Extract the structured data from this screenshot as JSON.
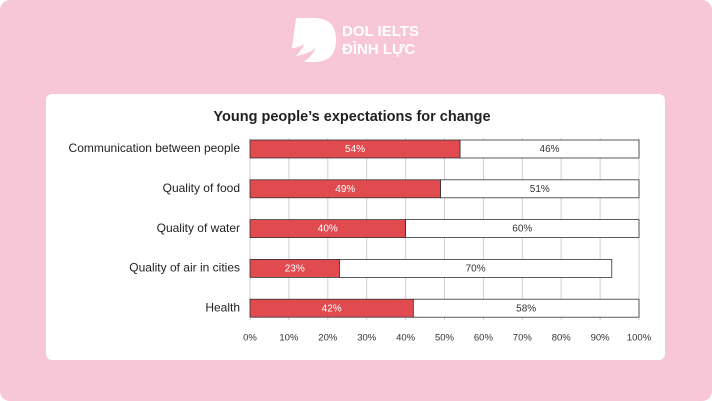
{
  "logo": {
    "line1": "DOL IELTS",
    "line2": "ĐÌNH LỰC"
  },
  "chart_data": {
    "type": "stacked-barh",
    "title": "Young people’s expectations for change",
    "categories": [
      "Communication between people",
      "Quality of food",
      "Quality of water",
      "Quality of air in cities",
      "Health"
    ],
    "series": [
      {
        "color": "#e14b50",
        "values": [
          54,
          49,
          40,
          23,
          42
        ],
        "value_labels": [
          "54%",
          "49%",
          "40%",
          "23%",
          "42%"
        ]
      },
      {
        "color": "#ffffff",
        "values": [
          46,
          51,
          60,
          70,
          58
        ],
        "value_labels": [
          "46%",
          "51%",
          "60%",
          "70%",
          "58%"
        ]
      }
    ],
    "xlim": [
      0,
      100
    ],
    "xticks": [
      {
        "value": 0,
        "label": "0%"
      },
      {
        "value": 10,
        "label": "10%"
      },
      {
        "value": 20,
        "label": "20%"
      },
      {
        "value": 30,
        "label": "30%"
      },
      {
        "value": 40,
        "label": "40%"
      },
      {
        "value": 50,
        "label": "50%"
      },
      {
        "value": 60,
        "label": "60%"
      },
      {
        "value": 70,
        "label": "70%"
      },
      {
        "value": 80,
        "label": "80%"
      },
      {
        "value": 90,
        "label": "90%"
      },
      {
        "value": 100,
        "label": "100%"
      }
    ],
    "grid": true
  }
}
